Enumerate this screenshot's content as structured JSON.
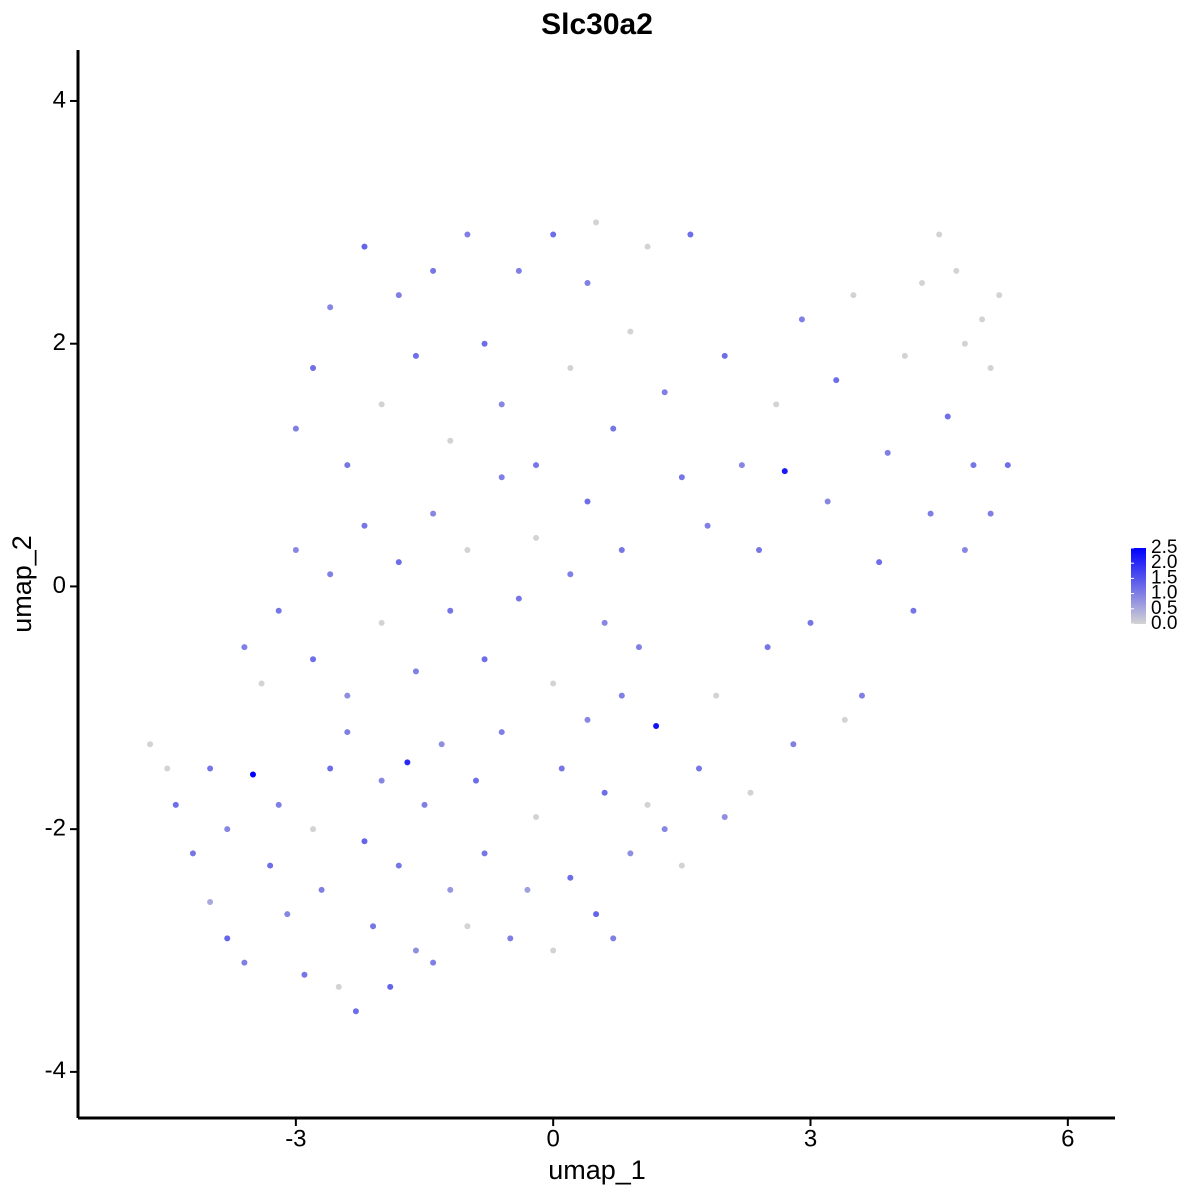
{
  "chart_data": {
    "type": "scatter",
    "title": "Slc30a2",
    "x_label": "umap_1",
    "y_label": "umap_2",
    "xlim": [
      -5.54,
      6.55
    ],
    "ylim": [
      -4.38,
      4.42
    ],
    "xticks": [
      -3,
      0,
      3,
      6
    ],
    "yticks": [
      -4,
      -2,
      0,
      2,
      4
    ],
    "color_low": "#d3d3d3",
    "color_high": "#0000ff",
    "color_lim": [
      0,
      2.5
    ],
    "color_ticks": [
      {
        "value": 0,
        "label": "0.0"
      },
      {
        "value": 0.5,
        "label": "0.5"
      },
      {
        "value": 1,
        "label": "1.0"
      },
      {
        "value": 1.5,
        "label": "1.5"
      },
      {
        "value": 2,
        "label": "2.0"
      },
      {
        "value": 2.5,
        "label": "2.5"
      }
    ],
    "x": [
      -4.7,
      -4.5,
      -4.4,
      -4.2,
      -4.0,
      -3.8,
      -3.6,
      -3.5,
      -3.3,
      -3.1,
      -2.9,
      -2.7,
      -2.5,
      -2.3,
      -2.1,
      -1.9,
      -1.6,
      -1.4,
      -1.2,
      -1.0,
      -0.8,
      -0.5,
      -0.3,
      0,
      0.2,
      0.5,
      0.7,
      0.9,
      1.1,
      1.3,
      1.5,
      1.7,
      2.0,
      -1.7,
      1.2,
      -4.0,
      -3.8,
      -3.2,
      -2.8,
      -2.6,
      -2.4,
      -2.2,
      -2.0,
      -1.8,
      -1.5,
      -1.3,
      -0.9,
      -0.6,
      -0.2,
      0.1,
      0.4,
      0.6,
      0.8,
      -3.6,
      -3.4,
      -3.2,
      -3.0,
      -2.8,
      -2.6,
      -2.4,
      -2.2,
      -2.0,
      -1.8,
      -1.6,
      -1.4,
      -1.2,
      -1.0,
      -0.8,
      -0.6,
      -0.4,
      -0.2,
      0,
      0.2,
      0.4,
      0.6,
      0.8,
      1.0,
      -3.0,
      -2.8,
      -2.6,
      -2.4,
      -2.2,
      -2.0,
      -1.8,
      -1.6,
      -1.4,
      -1.2,
      -1.0,
      -0.8,
      -0.6,
      -0.4,
      -0.2,
      0,
      0.2,
      0.4,
      0.5,
      0.7,
      0.9,
      1.1,
      1.3,
      1.6,
      1.5,
      1.8,
      2.0,
      2.2,
      2.4,
      2.6,
      2.7,
      2.9,
      3.0,
      3.2,
      3.3,
      3.5,
      3.6,
      3.8,
      3.9,
      4.1,
      4.2,
      4.4,
      4.5,
      4.6,
      4.7,
      4.8,
      4.9,
      5.0,
      5.1,
      5.2,
      5.3,
      5.1,
      4.3,
      4.8,
      3.4,
      2.8,
      2.3,
      2.5,
      1.9
    ],
    "y": [
      -1.3,
      -1.5,
      -1.8,
      -2.2,
      -2.6,
      -2.9,
      -3.1,
      -1.55,
      -2.3,
      -2.7,
      -3.2,
      -2.5,
      -3.3,
      -3.5,
      -2.8,
      -3.3,
      -3.0,
      -3.1,
      -2.5,
      -2.8,
      -2.2,
      -2.9,
      -2.5,
      -3.0,
      -2.4,
      -2.7,
      -2.9,
      -2.2,
      -1.8,
      -2.0,
      -2.3,
      -1.5,
      -1.9,
      -1.45,
      -1.15,
      -1.5,
      -2.0,
      -1.8,
      -2.0,
      -1.5,
      -1.2,
      -2.1,
      -1.6,
      -2.3,
      -1.8,
      -1.3,
      -1.6,
      -1.2,
      -1.9,
      -1.5,
      -1.1,
      -1.7,
      -0.9,
      -0.5,
      -0.8,
      -0.2,
      0.3,
      -0.6,
      0.1,
      -0.9,
      0.5,
      -0.3,
      0.2,
      -0.7,
      0.6,
      -0.2,
      0.3,
      -0.6,
      0.9,
      -0.1,
      0.4,
      -0.8,
      0.1,
      0.7,
      -0.3,
      0.3,
      -0.5,
      1.3,
      1.8,
      2.3,
      1.0,
      2.8,
      1.5,
      2.4,
      1.9,
      2.6,
      1.2,
      2.9,
      2.0,
      1.5,
      2.6,
      1.0,
      2.9,
      1.8,
      2.5,
      3.0,
      1.3,
      2.1,
      2.8,
      1.6,
      2.9,
      0.9,
      0.5,
      1.9,
      1.0,
      0.3,
      1.5,
      0.95,
      2.2,
      -0.3,
      0.7,
      1.7,
      2.4,
      -0.9,
      0.2,
      1.1,
      1.9,
      -0.2,
      0.6,
      2.9,
      1.4,
      2.6,
      0.3,
      1.0,
      2.2,
      1.8,
      2.4,
      1.0,
      0.6,
      2.5,
      2.0,
      -1.1,
      -1.3,
      -1.7,
      -0.5,
      -0.9
    ],
    "color_values": [
      0,
      0,
      1.2,
      1.1,
      0.5,
      1.3,
      1.0,
      2.5,
      1.2,
      0.9,
      1.1,
      1.0,
      0,
      1.2,
      1.1,
      1.3,
      0.8,
      1.0,
      0.7,
      0,
      1.1,
      1.0,
      0.6,
      0,
      1.2,
      1.3,
      1.0,
      0.8,
      0,
      0.9,
      0,
      1.1,
      0.8,
      2.0,
      2.3,
      1.1,
      0.9,
      1.0,
      0,
      1.2,
      1.0,
      1.3,
      0.9,
      1.1,
      1.0,
      0.8,
      1.2,
      1.0,
      0,
      1.1,
      0.9,
      1.2,
      1.0,
      1.0,
      0,
      1.1,
      0.9,
      1.2,
      1.0,
      0.8,
      1.1,
      0,
      1.2,
      1.0,
      0.9,
      1.1,
      0,
      1.2,
      1.0,
      1.1,
      0,
      0,
      1.0,
      1.2,
      0.9,
      1.1,
      1.0,
      1.0,
      1.2,
      0.9,
      1.1,
      1.3,
      0,
      1.0,
      1.2,
      1.1,
      0,
      1.0,
      1.2,
      0.9,
      1.0,
      1.1,
      1.2,
      0,
      1.0,
      0,
      1.1,
      0,
      0,
      1.0,
      1.2,
      1.1,
      1.0,
      1.2,
      0.9,
      1.1,
      0,
      2.2,
      1.0,
      1.1,
      0.9,
      1.2,
      0,
      1.0,
      1.2,
      1.0,
      0,
      1.1,
      1.0,
      0,
      1.2,
      0,
      0.9,
      1.1,
      0,
      0,
      0,
      1.2,
      1.0,
      0,
      0,
      0,
      1.0,
      0,
      1.1,
      0
    ]
  }
}
